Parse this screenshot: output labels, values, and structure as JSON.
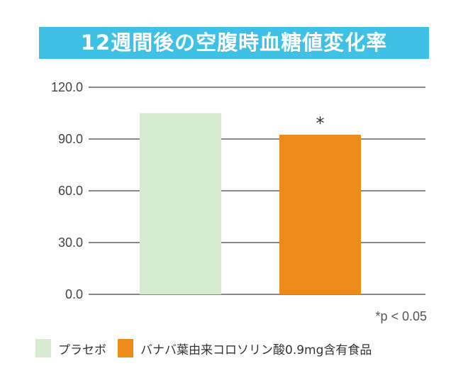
{
  "chart_data": {
    "type": "bar",
    "title": "12週間後の空腹時血糖値変化率",
    "categories": [
      "プラセボ",
      "バナバ葉由来コロソリン酸0.9mg含有食品"
    ],
    "values": [
      105,
      92.5
    ],
    "colors": [
      "#d6ebcf",
      "#ec8a1a"
    ],
    "ylim": [
      0,
      120
    ],
    "yticks": [
      "0.0",
      "30.0",
      "60.0",
      "90.0",
      "120.0"
    ],
    "annotations": [
      {
        "category": "バナバ葉由来コロソリン酸0.9mg含有食品",
        "text": "*"
      }
    ],
    "footnote": "*p < 0.05",
    "legend": [
      "プラセボ",
      "バナバ葉由来コロソリン酸0.9mg含有食品"
    ],
    "legend_position": "bottom",
    "grid": true
  }
}
